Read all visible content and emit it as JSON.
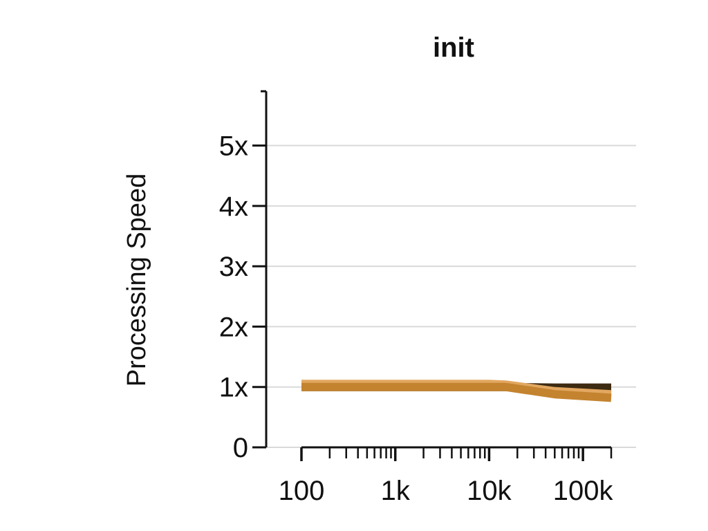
{
  "chart_data": {
    "type": "line",
    "title": "init",
    "xlabel": "",
    "ylabel": "Processing Speed",
    "x_scale": "log",
    "xlim": [
      100,
      200000
    ],
    "ylim": [
      0,
      5.9
    ],
    "grid": true,
    "x_ticks": [
      {
        "value": 100,
        "label": "100"
      },
      {
        "value": 1000,
        "label": "1k"
      },
      {
        "value": 10000,
        "label": "10k"
      },
      {
        "value": 100000,
        "label": "100k"
      }
    ],
    "y_ticks": [
      {
        "value": 0,
        "label": "0"
      },
      {
        "value": 1,
        "label": "1x"
      },
      {
        "value": 2,
        "label": "2x"
      },
      {
        "value": 3,
        "label": "3x"
      },
      {
        "value": 4,
        "label": "4x"
      },
      {
        "value": 5,
        "label": "5x"
      }
    ],
    "x": [
      100,
      1000,
      10000,
      15000,
      50000,
      200000
    ],
    "series": [
      {
        "color": "#3d2a12",
        "values": [
          1.0,
          1.0,
          1.0,
          1.0,
          0.99,
          0.99
        ]
      },
      {
        "color": "#e2a760",
        "values": [
          1.05,
          1.05,
          1.05,
          1.04,
          0.93,
          0.88
        ]
      },
      {
        "color": "#c4832f",
        "values": [
          1.0,
          1.0,
          1.0,
          1.0,
          0.88,
          0.82
        ]
      }
    ]
  }
}
